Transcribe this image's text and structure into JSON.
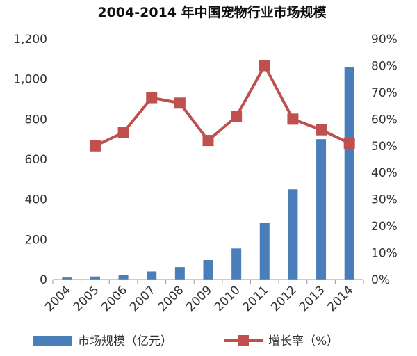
{
  "chart_data": {
    "type": "bar",
    "title": "2004-2014 年中国宠物行业市场规模",
    "categories": [
      "2004",
      "2005",
      "2006",
      "2007",
      "2008",
      "2009",
      "2010",
      "2011",
      "2012",
      "2013",
      "2014"
    ],
    "series": [
      {
        "name": "市场规模（亿元）",
        "type": "bar",
        "axis": "left",
        "color": "#4a7ebb",
        "values": [
          10,
          15,
          23,
          40,
          62,
          97,
          155,
          283,
          450,
          700,
          1058
        ]
      },
      {
        "name": "增长率（%）",
        "type": "line",
        "axis": "right",
        "color": "#c0504d",
        "values": [
          null,
          0.5,
          0.55,
          0.68,
          0.66,
          0.52,
          0.61,
          0.8,
          0.6,
          0.56,
          0.51
        ]
      }
    ],
    "left_axis": {
      "ylim": [
        0,
        1200
      ],
      "ticks": [
        0,
        200,
        400,
        600,
        800,
        1000,
        1200
      ],
      "tick_labels": [
        "0",
        "200",
        "400",
        "600",
        "800",
        "1,000",
        "1,200"
      ]
    },
    "right_axis": {
      "ylim": [
        0,
        0.9
      ],
      "ticks": [
        0,
        0.1,
        0.2,
        0.3,
        0.4,
        0.5,
        0.6,
        0.7,
        0.8,
        0.9
      ],
      "tick_labels": [
        "0%",
        "10%",
        "20%",
        "30%",
        "40%",
        "50%",
        "60%",
        "70%",
        "80%",
        "90%"
      ]
    },
    "grid": false,
    "legend_position": "bottom"
  }
}
